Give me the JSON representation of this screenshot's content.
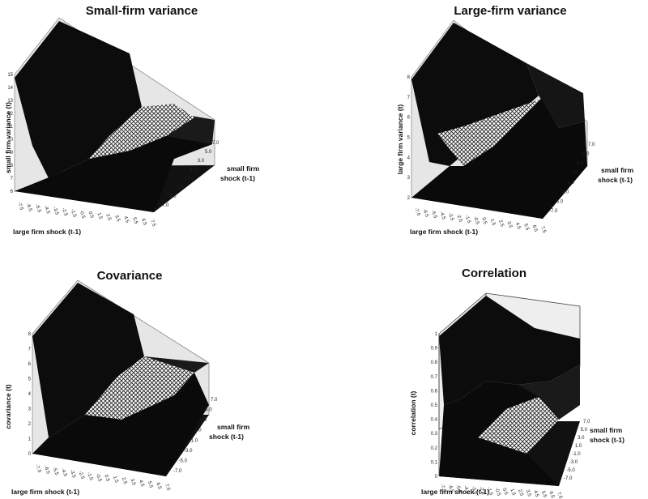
{
  "chart_data": [
    {
      "type": "surface",
      "title": "Small-firm variance",
      "zlabel": "small firm variance (t)",
      "xlabel": "large firm shock (t-1)",
      "ylabel": [
        "small firm",
        "shock (t-1)"
      ],
      "zticks": [
        "6",
        "7",
        "8",
        "9",
        "10",
        "11",
        "12",
        "13",
        "14",
        "15"
      ],
      "zlim": [
        6,
        15
      ],
      "xticks": [
        "-7.5",
        "-6.5",
        "-5.5",
        "-4.5",
        "-3.5",
        "-2.5",
        "-1.5",
        "-0.5",
        "0.5",
        "1.5",
        "2.5",
        "3.5",
        "4.5",
        "5.5",
        "6.5",
        "7.5"
      ],
      "yticks": [
        "-7.0",
        "-5.0",
        "-3.0",
        "-1.0",
        "1.0",
        "3.0",
        "5.0",
        "7.0"
      ]
    },
    {
      "type": "surface",
      "title": "Large-firm variance",
      "zlabel": "large firm variance (t)",
      "xlabel": "large firm shock (t-1)",
      "ylabel": [
        "small firm",
        "shock (t-1)"
      ],
      "zticks": [
        "2",
        "3",
        "4",
        "5",
        "6",
        "7",
        "8"
      ],
      "zlim": [
        2,
        8
      ],
      "xticks": [
        "-7.5",
        "-6.5",
        "-5.5",
        "-4.5",
        "-3.5",
        "-2.5",
        "-1.5",
        "-0.5",
        "0.5",
        "1.5",
        "2.5",
        "3.5",
        "4.5",
        "5.5",
        "6.5",
        "7.5"
      ],
      "yticks": [
        "-7.0",
        "-5.0",
        "-3.0",
        "-1.0",
        "1.0",
        "3.0",
        "5.0",
        "7.0"
      ]
    },
    {
      "type": "surface",
      "title": "Covariance",
      "zlabel": "covariance (t)",
      "xlabel": "large firm shock (t-1)",
      "ylabel": [
        "small firm",
        "shock (t-1)"
      ],
      "zticks": [
        "0",
        "1",
        "2",
        "3",
        "4",
        "5",
        "6",
        "7",
        "8"
      ],
      "zlim": [
        0,
        8
      ],
      "xticks": [
        "-7.5",
        "-6.5",
        "-5.5",
        "-4.5",
        "-3.5",
        "-2.5",
        "-1.5",
        "-0.5",
        "0.5",
        "1.5",
        "2.5",
        "3.5",
        "4.5",
        "5.5",
        "6.5",
        "7.5"
      ],
      "yticks": [
        "-7.0",
        "-5.0",
        "-3.0",
        "-1.0",
        "1.0",
        "3.0",
        "5.0",
        "7.0"
      ]
    },
    {
      "type": "surface",
      "title": "Correlation",
      "zlabel": "correlation (t)",
      "xlabel": "large firm shock (t-1)",
      "ylabel": [
        "small firm",
        "shock (t-1)"
      ],
      "zticks": [
        "0",
        "0.1",
        "0.2",
        "0.3",
        "0.4",
        "0.5",
        "0.6",
        "0.7",
        "0.8",
        "0.9",
        "1"
      ],
      "zlim": [
        0,
        1
      ],
      "xticks": [
        "-7.5",
        "-6.5",
        "-5.5",
        "-4.5",
        "-3.5",
        "-2.5",
        "-1.5",
        "-0.5",
        "0.5",
        "1.5",
        "2.5",
        "3.5",
        "4.5",
        "5.5",
        "6.5",
        "7.5"
      ],
      "yticks": [
        "-7.0",
        "-5.0",
        "-3.0",
        "-1.0",
        "1.0",
        "3.0",
        "5.0",
        "7.0"
      ]
    }
  ]
}
